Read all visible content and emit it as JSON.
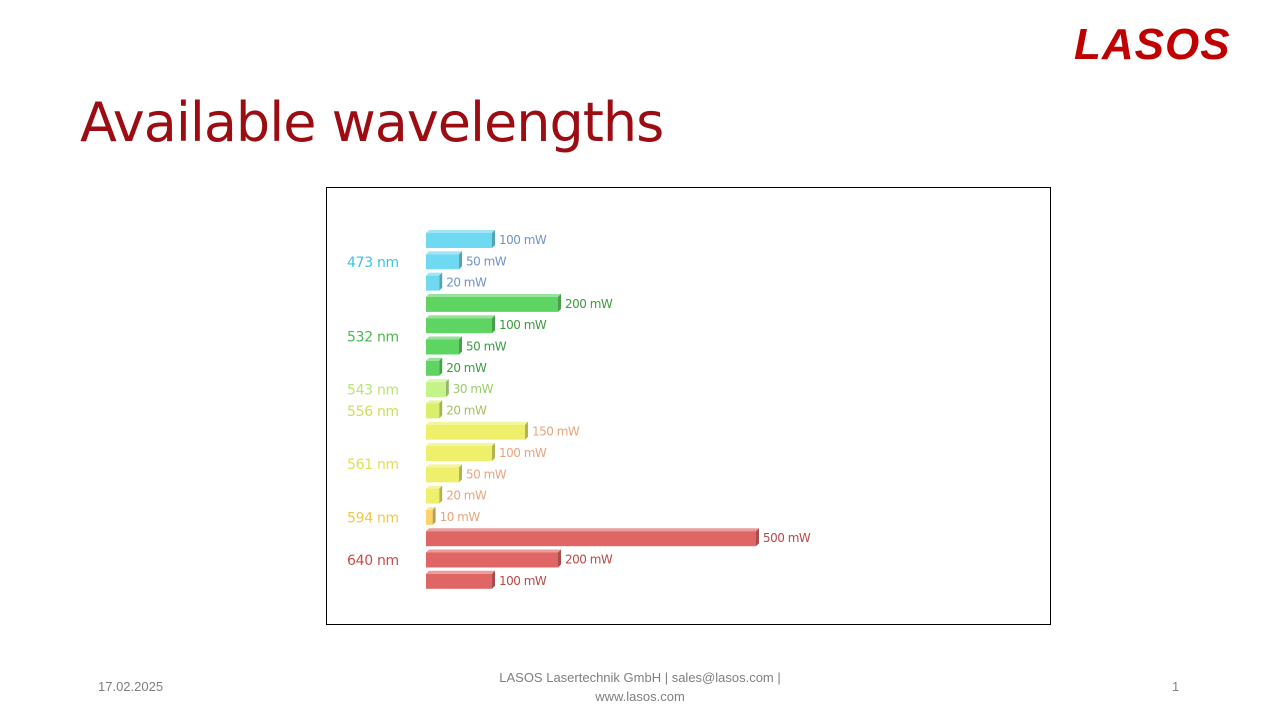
{
  "logo": {
    "text": "LASOS",
    "color": "#c00000"
  },
  "slide": {
    "title": "Available wavelengths",
    "title_color": "#9b0d12"
  },
  "footer": {
    "date": "17.02.2025",
    "company_line1": "LASOS Lasertechnik GmbH | sales@lasos.com |",
    "company_line2": "www.lasos.com",
    "page_number": "1"
  },
  "chart_data": {
    "type": "bar",
    "orientation": "horizontal",
    "title": "",
    "xlabel": "",
    "ylabel": "",
    "unit": "mW",
    "xlim": [
      0,
      500
    ],
    "grid": false,
    "legend": "none",
    "groups": [
      {
        "label": "473 nm",
        "color": "#6fd9f1",
        "label_color": "#3cc3e8",
        "value_label_color": "#6f93c9",
        "bars": [
          {
            "value": 100,
            "label": "100 mW"
          },
          {
            "value": 50,
            "label": "50 mW"
          },
          {
            "value": 20,
            "label": "20 mW"
          }
        ]
      },
      {
        "label": "532 nm",
        "color": "#5ed462",
        "label_color": "#49b84f",
        "value_label_color": "#3f9a3f",
        "bars": [
          {
            "value": 200,
            "label": "200 mW"
          },
          {
            "value": 100,
            "label": "100 mW"
          },
          {
            "value": 50,
            "label": "50 mW"
          },
          {
            "value": 20,
            "label": "20 mW"
          }
        ]
      },
      {
        "label": "543 nm",
        "color": "#c5f38a",
        "label_color": "#b8e670",
        "value_label_color": "#9acb6a",
        "bars": [
          {
            "value": 30,
            "label": "30 mW"
          }
        ]
      },
      {
        "label": "556 nm",
        "color": "#d9f06a",
        "label_color": "#cde05a",
        "value_label_color": "#a8bf5f",
        "bars": [
          {
            "value": 20,
            "label": "20 mW"
          }
        ]
      },
      {
        "label": "561 nm",
        "color": "#eeef6b",
        "label_color": "#e2e04d",
        "value_label_color": "#e7a47e",
        "bars": [
          {
            "value": 150,
            "label": "150 mW"
          },
          {
            "value": 100,
            "label": "100 mW"
          },
          {
            "value": 50,
            "label": "50 mW"
          },
          {
            "value": 20,
            "label": "20 mW"
          }
        ]
      },
      {
        "label": "594 nm",
        "color": "#fbd46a",
        "label_color": "#f3c648",
        "value_label_color": "#e7a47e",
        "bars": [
          {
            "value": 10,
            "label": "10 mW"
          }
        ]
      },
      {
        "label": "640 nm",
        "color": "#e06666",
        "label_color": "#c94b4b",
        "value_label_color": "#b84848",
        "bars": [
          {
            "value": 500,
            "label": "500 mW"
          },
          {
            "value": 200,
            "label": "200 mW"
          },
          {
            "value": 100,
            "label": "100 mW"
          }
        ]
      }
    ]
  }
}
